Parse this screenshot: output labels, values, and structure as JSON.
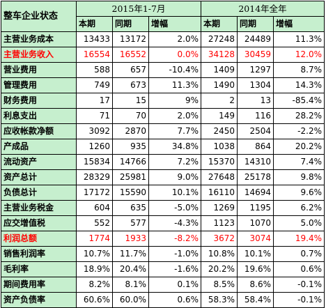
{
  "header": {
    "corner": "整车企业状态",
    "period1": "2015年1-7月",
    "period2": "2014年全年",
    "sub": [
      "本期",
      "同期",
      "增幅",
      "本期",
      "同期",
      "增幅"
    ]
  },
  "rows": [
    {
      "label": "主营业务成本",
      "highlight": false,
      "values": [
        "13433",
        "13172",
        "2.0%",
        "27248",
        "24489",
        "11.3%"
      ]
    },
    {
      "label": "主营业务收入",
      "highlight": true,
      "values": [
        "16554",
        "16552",
        "0.0%",
        "34128",
        "30459",
        "12.0%"
      ]
    },
    {
      "label": "营业费用",
      "highlight": false,
      "values": [
        "588",
        "657",
        "-10.4%",
        "1409",
        "1297",
        "8.7%"
      ]
    },
    {
      "label": "管理费用",
      "highlight": false,
      "values": [
        "749",
        "673",
        "11.3%",
        "1490",
        "1304",
        "14.3%"
      ]
    },
    {
      "label": "财务费用",
      "highlight": false,
      "values": [
        "17",
        "15",
        "9%",
        "2",
        "13",
        "-85.4%"
      ]
    },
    {
      "label": "利息支出",
      "highlight": false,
      "values": [
        "71",
        "70",
        "2.0%",
        "149",
        "116",
        "28.2%"
      ]
    },
    {
      "label": "应收帐款净额",
      "highlight": false,
      "values": [
        "3092",
        "2870",
        "7.7%",
        "2450",
        "2504",
        "-2.2%"
      ]
    },
    {
      "label": "产成品",
      "highlight": false,
      "values": [
        "1260",
        "935",
        "34.8%",
        "1038",
        "864",
        "20.2%"
      ]
    },
    {
      "label": "流动资产",
      "highlight": false,
      "values": [
        "15834",
        "14766",
        "7.2%",
        "15370",
        "14310",
        "7.4%"
      ]
    },
    {
      "label": "资产总计",
      "highlight": false,
      "values": [
        "28329",
        "25981",
        "9.0%",
        "27648",
        "25178",
        "9.8%"
      ]
    },
    {
      "label": "负债总计",
      "highlight": false,
      "values": [
        "17172",
        "15590",
        "10.1%",
        "16110",
        "14694",
        "9.6%"
      ]
    },
    {
      "label": "主营业务税金",
      "highlight": false,
      "values": [
        "604",
        "635",
        "-5.0%",
        "1269",
        "1195",
        "6.2%"
      ]
    },
    {
      "label": "应交增值税",
      "highlight": false,
      "values": [
        "552",
        "577",
        "-4.3%",
        "1123",
        "1070",
        "5.0%"
      ]
    },
    {
      "label": "利润总额",
      "highlight": true,
      "values": [
        "1774",
        "1933",
        "-8.2%",
        "3672",
        "3074",
        "19.4%"
      ]
    },
    {
      "label": "销售利润率",
      "highlight": false,
      "values": [
        "10.7%",
        "11.7%",
        "-1.0%",
        "10.8%",
        "10.1%",
        "0.7%"
      ]
    },
    {
      "label": "毛利率",
      "highlight": false,
      "values": [
        "18.9%",
        "20.4%",
        "-1.6%",
        "20.2%",
        "19.6%",
        "0.6%"
      ]
    },
    {
      "label": "期间费用率",
      "highlight": false,
      "values": [
        "8.2%",
        "8.1%",
        "0.1%",
        "8.5%",
        "8.6%",
        "-0.1%"
      ]
    },
    {
      "label": "资产负债率",
      "highlight": false,
      "values": [
        "60.6%",
        "60.0%",
        "0.6%",
        "58.3%",
        "58.4%",
        "-0.1%"
      ]
    }
  ],
  "colors": {
    "label_bg": "#c6efce",
    "highlight_text": "#ff0000",
    "cell_bg": "#ffffff",
    "border": "#000000"
  }
}
